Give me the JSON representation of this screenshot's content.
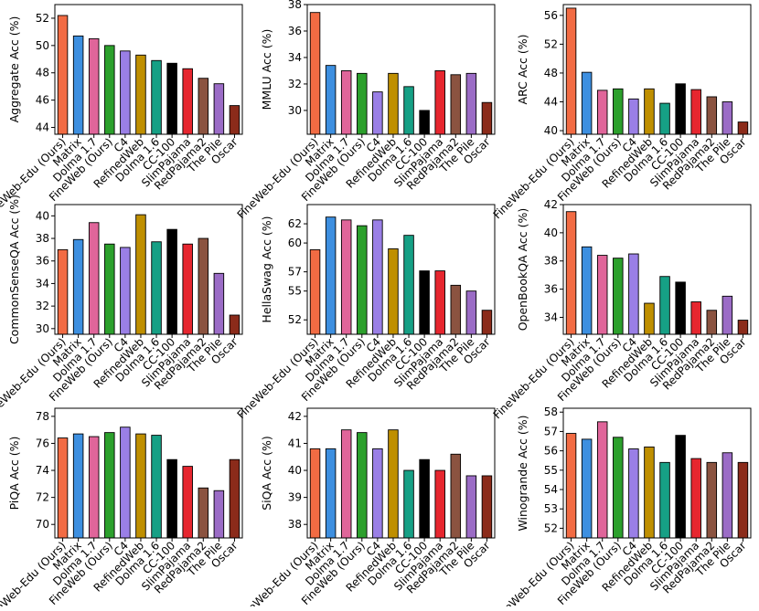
{
  "categories": [
    "FineWeb-Edu (Ours)",
    "Matrix",
    "Dolma 1.7",
    "FineWeb (Ours)",
    "C4",
    "RefinedWeb",
    "Dolma 1.6",
    "CC-100",
    "SlimPajama",
    "RedPajama2",
    "The Pile",
    "Oscar"
  ],
  "colors": [
    "#f26b43",
    "#3d8fe0",
    "#e0659a",
    "#2ca02c",
    "#9a7fe6",
    "#bf8f00",
    "#16a085",
    "#000000",
    "#e6262f",
    "#8b5340",
    "#9b6cc6",
    "#8b2b1a"
  ],
  "chart_data": [
    {
      "type": "bar",
      "ylabel": "Aggregate Acc (%)",
      "ylim": [
        43.5,
        53
      ],
      "yticks": [
        44,
        46,
        48,
        50,
        52
      ],
      "values": [
        52.2,
        50.7,
        50.5,
        50.0,
        49.6,
        49.3,
        48.9,
        48.7,
        48.3,
        47.6,
        47.2,
        45.6
      ]
    },
    {
      "type": "bar",
      "ylabel": "MMLU Acc (%)",
      "ylim": [
        28.2,
        38
      ],
      "yticks": [
        30,
        32,
        34,
        36,
        38
      ],
      "values": [
        37.4,
        33.4,
        33.0,
        32.8,
        31.4,
        32.8,
        31.8,
        30.0,
        33.0,
        32.7,
        32.8,
        30.6
      ]
    },
    {
      "type": "bar",
      "ylabel": "ARC Acc (%)",
      "ylim": [
        39.5,
        57.5
      ],
      "yticks": [
        40,
        44,
        48,
        52,
        56
      ],
      "values": [
        57.0,
        48.1,
        45.6,
        45.8,
        44.4,
        45.8,
        43.8,
        46.5,
        45.7,
        44.7,
        44.0,
        41.2
      ]
    },
    {
      "type": "bar",
      "ylabel": "CommonSenseQA Acc (%)",
      "ylim": [
        29.5,
        41
      ],
      "yticks": [
        30,
        32,
        34,
        36,
        38,
        40
      ],
      "values": [
        37.0,
        37.9,
        39.4,
        37.5,
        37.2,
        40.1,
        37.7,
        38.8,
        37.5,
        38.0,
        34.9,
        31.2
      ]
    },
    {
      "type": "bar",
      "ylabel": "HellaSwag Acc (%)",
      "ylim": [
        50.5,
        64
      ],
      "yticks": [
        52,
        55,
        57,
        60,
        62
      ],
      "values": [
        59.3,
        62.7,
        62.4,
        61.8,
        62.4,
        59.4,
        60.8,
        57.1,
        57.1,
        55.6,
        55.0,
        53.0
      ]
    },
    {
      "type": "bar",
      "ylabel": "OpenBookQA Acc (%)",
      "ylim": [
        32.8,
        42
      ],
      "yticks": [
        34,
        36,
        38,
        40,
        42
      ],
      "values": [
        41.5,
        39.0,
        38.4,
        38.2,
        38.5,
        35.0,
        36.9,
        36.5,
        35.1,
        34.5,
        35.5,
        33.8
      ]
    },
    {
      "type": "bar",
      "ylabel": "PiQA Acc (%)",
      "ylim": [
        69,
        78.6
      ],
      "yticks": [
        70,
        72,
        74,
        76,
        78
      ],
      "values": [
        76.4,
        76.7,
        76.5,
        76.8,
        77.2,
        76.7,
        76.6,
        74.8,
        74.3,
        72.7,
        72.5,
        74.8
      ]
    },
    {
      "type": "bar",
      "ylabel": "SiQA Acc (%)",
      "ylim": [
        37.5,
        42.3
      ],
      "yticks": [
        38,
        39,
        40,
        41,
        42
      ],
      "values": [
        40.8,
        40.8,
        41.5,
        41.4,
        40.8,
        41.5,
        40.0,
        40.4,
        40.0,
        40.6,
        39.8,
        39.8
      ]
    },
    {
      "type": "bar",
      "ylabel": "Winogrande Acc (%)",
      "ylim": [
        51.5,
        58.2
      ],
      "yticks": [
        52,
        53,
        54,
        55,
        56,
        57,
        58
      ],
      "values": [
        56.9,
        56.6,
        57.5,
        56.7,
        56.1,
        56.2,
        55.4,
        56.8,
        55.6,
        55.4,
        55.9,
        55.4
      ]
    }
  ]
}
